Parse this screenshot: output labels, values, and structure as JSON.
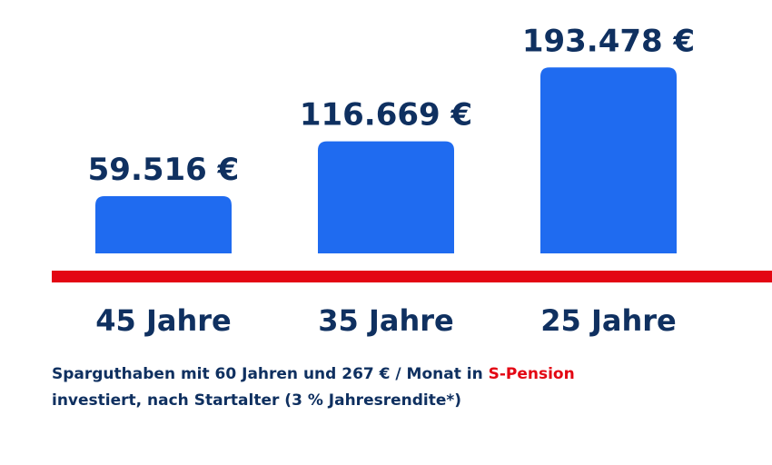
{
  "chart_data": {
    "type": "bar",
    "categories": [
      "45 Jahre",
      "35 Jahre",
      "25 Jahre"
    ],
    "values": [
      59516,
      116669,
      193478
    ],
    "value_labels": [
      "59.516 €",
      "116.669 €",
      "193.478 €"
    ],
    "title": "",
    "xlabel": "",
    "ylabel": "",
    "grid": false,
    "legend": "none"
  },
  "caption": {
    "part1": "Sparguthaben mit 60 Jahren und 267 € / Monat in ",
    "highlight": "S-Pension",
    "part2": "investiert, nach Startalter (3 % Jahresrendite*)"
  },
  "colors": {
    "bar": "#1f6bf0",
    "baseline": "#e30613",
    "text": "#0f3060",
    "accent": "#e30613"
  }
}
